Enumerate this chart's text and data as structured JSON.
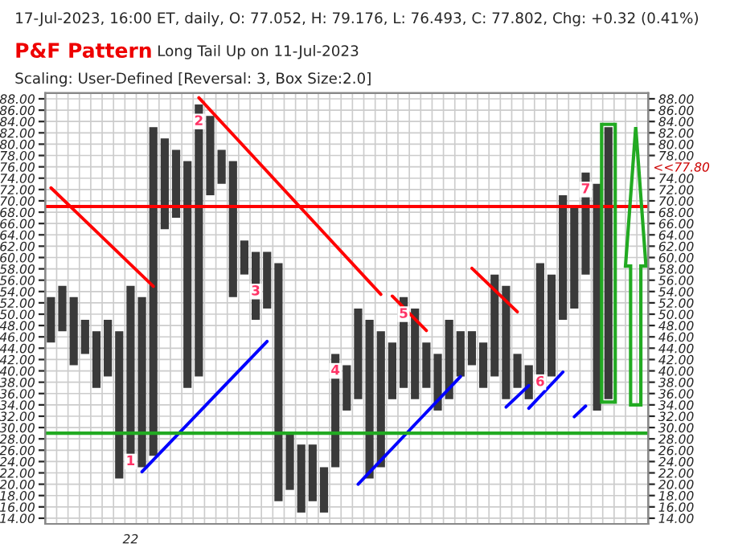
{
  "chart_data": {
    "type": "bar",
    "title": "17-Jul-2023, 16:00 ET, daily, O: 77.052, H: 79.176, L: 76.493, C: 77.802, Chg: +0.32 (0.41%)",
    "subtitle": "P&F Pattern",
    "annotations": [
      "Long Tail Up on 11-Jul-2023",
      "Scaling: User-Defined [Reversal: 3, Box Size:2.0]",
      "1",
      "2",
      "3",
      "4",
      "5",
      "6",
      "7",
      "<<77.80"
    ],
    "categories": [
      null,
      null,
      null,
      null,
      null,
      null,
      null,
      "22",
      null,
      null,
      null,
      null,
      null,
      null,
      null,
      null,
      null,
      null,
      null,
      null,
      null,
      null,
      null,
      null,
      null,
      null,
      null,
      null,
      null,
      null,
      null,
      null,
      null,
      null,
      null,
      null,
      null,
      null,
      null,
      null,
      null,
      null,
      null,
      null,
      null,
      null,
      null,
      null,
      null,
      null,
      null,
      null,
      null
    ],
    "series": [
      {
        "color": "#3a3a3a",
        "values": [
          8,
          8,
          12,
          6,
          10,
          10,
          26,
          32,
          30,
          58,
          16,
          12,
          40,
          48,
          14,
          6,
          24,
          6,
          12,
          10,
          42,
          10,
          12,
          10,
          8,
          20,
          8,
          16,
          28,
          24,
          10,
          16,
          16,
          8,
          10,
          14,
          8,
          6,
          8,
          18,
          20,
          6,
          6,
          22,
          18,
          22,
          18,
          18,
          40,
          48,
          null,
          null,
          null
        ],
        "base": [
          45,
          47,
          41,
          43,
          37,
          39,
          21,
          23,
          23,
          25,
          65,
          67,
          37,
          39,
          71,
          73,
          53,
          57,
          49,
          51,
          17,
          19,
          15,
          17,
          15,
          23,
          33,
          35,
          21,
          23,
          35,
          37,
          35,
          37,
          33,
          35,
          39,
          41,
          37,
          39,
          35,
          37,
          35,
          37,
          39,
          49,
          51,
          57,
          33,
          35,
          null,
          null,
          null
        ]
      },
      {
        "type": "line",
        "color": "#ff0000",
        "values": [
          72.3,
          null,
          null,
          null,
          null,
          null,
          null,
          null,
          null,
          54.9,
          null,
          null,
          null,
          null,
          null,
          null,
          null,
          null,
          null,
          null,
          null,
          null,
          null,
          null,
          null,
          null,
          null,
          null,
          null,
          null,
          null,
          null,
          null,
          null,
          null,
          null,
          null,
          null,
          null,
          null,
          null,
          null,
          null,
          null,
          null,
          null,
          null,
          null,
          null,
          null,
          null,
          null,
          null
        ]
      },
      {
        "type": "line",
        "color": "#ff0000",
        "values": [
          null,
          null,
          null,
          null,
          null,
          null,
          null,
          null,
          null,
          null,
          null,
          null,
          null,
          88.2,
          null,
          null,
          null,
          null,
          null,
          null,
          null,
          null,
          null,
          null,
          null,
          null,
          null,
          null,
          null,
          53.5,
          null,
          null,
          null,
          null,
          null,
          null,
          null,
          null,
          null,
          null,
          null,
          null,
          null,
          null,
          null,
          null,
          null,
          null,
          null,
          null,
          null,
          null,
          null
        ]
      },
      {
        "type": "line",
        "color": "#ff0000",
        "values": [
          null,
          null,
          null,
          null,
          null,
          null,
          null,
          null,
          null,
          null,
          null,
          null,
          null,
          null,
          null,
          null,
          null,
          null,
          null,
          null,
          null,
          null,
          null,
          null,
          null,
          null,
          null,
          null,
          null,
          null,
          53.2,
          null,
          null,
          47.1,
          null,
          null,
          null,
          null,
          null,
          null,
          null,
          null,
          null,
          null,
          null,
          null,
          null,
          null,
          null,
          null,
          null,
          null,
          null
        ]
      },
      {
        "type": "line",
        "color": "#ff0000",
        "values": [
          null,
          null,
          null,
          null,
          null,
          null,
          null,
          null,
          null,
          null,
          null,
          null,
          null,
          null,
          null,
          null,
          null,
          null,
          null,
          null,
          null,
          null,
          null,
          null,
          null,
          null,
          null,
          null,
          null,
          null,
          null,
          null,
          null,
          null,
          null,
          null,
          null,
          58.1,
          null,
          null,
          null,
          50.4,
          null,
          null,
          null,
          null,
          null,
          null,
          null,
          null,
          null,
          null,
          null
        ]
      },
      {
        "type": "line",
        "color": "#0000ff",
        "values": [
          null,
          null,
          null,
          null,
          null,
          null,
          null,
          null,
          22.2,
          null,
          null,
          null,
          null,
          null,
          null,
          null,
          null,
          null,
          null,
          45.2,
          null,
          null,
          null,
          null,
          null,
          null,
          null,
          null,
          null,
          null,
          null,
          null,
          null,
          null,
          null,
          null,
          null,
          null,
          null,
          null,
          null,
          null,
          null,
          null,
          null,
          null,
          null,
          null,
          null,
          null,
          null,
          null,
          null
        ]
      },
      {
        "type": "line",
        "color": "#0000ff",
        "values": [
          null,
          null,
          null,
          null,
          null,
          null,
          null,
          null,
          null,
          null,
          null,
          null,
          null,
          null,
          null,
          null,
          null,
          null,
          null,
          null,
          null,
          null,
          null,
          null,
          null,
          null,
          null,
          20.0,
          null,
          null,
          null,
          null,
          null,
          null,
          null,
          null,
          39.0,
          null,
          null,
          null,
          null,
          null,
          null,
          null,
          null,
          null,
          null,
          null,
          null,
          null,
          null,
          null,
          null
        ]
      },
      {
        "type": "line",
        "color": "#0000ff",
        "values": [
          null,
          null,
          null,
          null,
          null,
          null,
          null,
          null,
          null,
          null,
          null,
          null,
          null,
          null,
          null,
          null,
          null,
          null,
          null,
          null,
          null,
          null,
          null,
          null,
          null,
          null,
          null,
          null,
          null,
          null,
          null,
          null,
          null,
          null,
          null,
          null,
          null,
          null,
          null,
          null,
          33.6,
          null,
          37.4,
          null,
          null,
          null,
          null,
          null,
          null,
          null,
          null,
          null,
          null
        ]
      },
      {
        "type": "line",
        "color": "#0000ff",
        "values": [
          null,
          null,
          null,
          null,
          null,
          null,
          null,
          null,
          null,
          null,
          null,
          null,
          null,
          null,
          null,
          null,
          null,
          null,
          null,
          null,
          null,
          null,
          null,
          null,
          null,
          null,
          null,
          null,
          null,
          null,
          null,
          null,
          null,
          null,
          null,
          null,
          null,
          null,
          null,
          null,
          null,
          null,
          33.4,
          null,
          null,
          39.8,
          null,
          null,
          null,
          null,
          null,
          null,
          null
        ]
      },
      {
        "type": "line",
        "color": "#0000ff",
        "values": [
          null,
          null,
          null,
          null,
          null,
          null,
          null,
          null,
          null,
          null,
          null,
          null,
          null,
          null,
          null,
          null,
          null,
          null,
          null,
          null,
          null,
          null,
          null,
          null,
          null,
          null,
          null,
          null,
          null,
          null,
          null,
          null,
          null,
          null,
          null,
          null,
          null,
          null,
          null,
          null,
          null,
          null,
          null,
          null,
          null,
          null,
          31.9,
          33.8,
          null,
          null,
          null,
          null,
          null
        ]
      }
    ],
    "ref_lines": [
      {
        "axis": "y",
        "value": 29,
        "color": "#22aa22"
      },
      {
        "axis": "y",
        "value": 69,
        "color": "#ff0000"
      }
    ],
    "ylim": [
      13,
      89
    ],
    "yticks": [
      {
        "value": 14,
        "label": "14.00"
      },
      {
        "value": 16,
        "label": "16.00"
      },
      {
        "value": 18,
        "label": "18.00"
      },
      {
        "value": 20,
        "label": "20.00"
      },
      {
        "value": 22,
        "label": "22.00"
      },
      {
        "value": 24,
        "label": "24.00"
      },
      {
        "value": 26,
        "label": "26.00"
      },
      {
        "value": 28,
        "label": "28.00"
      },
      {
        "value": 30,
        "label": "30.00"
      },
      {
        "value": 32,
        "label": "32.00"
      },
      {
        "value": 34,
        "label": "34.00"
      },
      {
        "value": 36,
        "label": "36.00"
      },
      {
        "value": 38,
        "label": "38.00"
      },
      {
        "value": 40,
        "label": "40.00"
      },
      {
        "value": 42,
        "label": "42.00"
      },
      {
        "value": 44,
        "label": "44.00"
      },
      {
        "value": 46,
        "label": "46.00"
      },
      {
        "value": 48,
        "label": "48.00"
      },
      {
        "value": 50,
        "label": "50.00"
      },
      {
        "value": 52,
        "label": "52.00"
      },
      {
        "value": 54,
        "label": "54.00"
      },
      {
        "value": 56,
        "label": "56.00"
      },
      {
        "value": 58,
        "label": "58.00"
      },
      {
        "value": 60,
        "label": "60.00"
      },
      {
        "value": 62,
        "label": "62.00"
      },
      {
        "value": 64,
        "label": "64.00"
      },
      {
        "value": 66,
        "label": "66.00"
      },
      {
        "value": 68,
        "label": "68.00"
      },
      {
        "value": 70,
        "label": "70.00"
      },
      {
        "value": 72,
        "label": "72.00"
      },
      {
        "value": 74,
        "label": "74.00"
      },
      {
        "value": 76,
        "label": "76.00"
      },
      {
        "value": 78,
        "label": "78.00"
      },
      {
        "value": 80,
        "label": "80.00"
      },
      {
        "value": 82,
        "label": "82.00"
      },
      {
        "value": 84,
        "label": "84.00"
      },
      {
        "value": 86,
        "label": "86.00"
      },
      {
        "value": 88,
        "label": "88.00"
      }
    ],
    "y2lim": [
      13,
      89
    ],
    "y2ticks": [
      {
        "value": 14,
        "label": "14.00"
      },
      {
        "value": 16,
        "label": "16.00"
      },
      {
        "value": 18,
        "label": "18.00"
      },
      {
        "value": 20,
        "label": "20.00"
      },
      {
        "value": 22,
        "label": "22.00"
      },
      {
        "value": 24,
        "label": "24.00"
      },
      {
        "value": 26,
        "label": "26.00"
      },
      {
        "value": 28,
        "label": "28.00"
      },
      {
        "value": 30,
        "label": "30.00"
      },
      {
        "value": 32,
        "label": "32.00"
      },
      {
        "value": 34,
        "label": "34.00"
      },
      {
        "value": 36,
        "label": "36.00"
      },
      {
        "value": 38,
        "label": "38.00"
      },
      {
        "value": 40,
        "label": "40.00"
      },
      {
        "value": 42,
        "label": "42.00"
      },
      {
        "value": 44,
        "label": "44.00"
      },
      {
        "value": 46,
        "label": "46.00"
      },
      {
        "value": 48,
        "label": "48.00"
      },
      {
        "value": 50,
        "label": "50.00"
      },
      {
        "value": 52,
        "label": "52.00"
      },
      {
        "value": 54,
        "label": "54.00"
      },
      {
        "value": 56,
        "label": "56.00"
      },
      {
        "value": 58,
        "label": "58.00"
      },
      {
        "value": 60,
        "label": "60.00"
      },
      {
        "value": 62,
        "label": "62.00"
      },
      {
        "value": 64,
        "label": "64.00"
      },
      {
        "value": 66,
        "label": "66.00"
      },
      {
        "value": 68,
        "label": "68.00"
      },
      {
        "value": 70,
        "label": "70.00"
      },
      {
        "value": 72,
        "label": "72.00"
      },
      {
        "value": 74,
        "label": "74.00"
      },
      {
        "value": 78,
        "label": "78.00"
      },
      {
        "value": 80,
        "label": "80.00"
      },
      {
        "value": 82,
        "label": "82.00"
      },
      {
        "value": 84,
        "label": "84.00"
      },
      {
        "value": 86,
        "label": "86.00"
      },
      {
        "value": 88,
        "label": "88.00"
      }
    ],
    "grid": true
  }
}
